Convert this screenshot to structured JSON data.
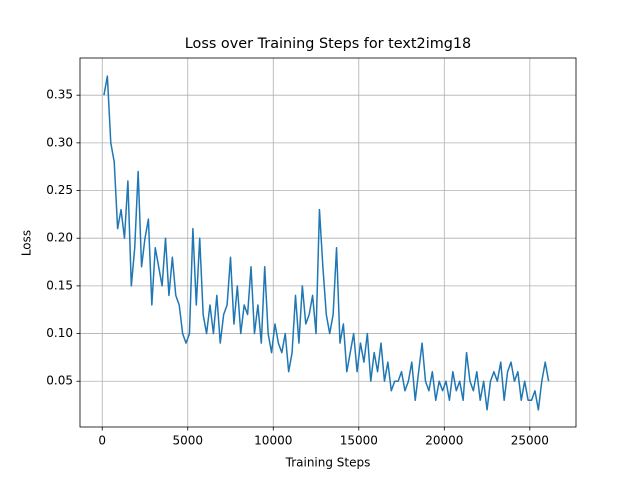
{
  "chart_data": {
    "type": "line",
    "title": "Loss over Training Steps for text2img18",
    "xlabel": "Training Steps",
    "ylabel": "Loss",
    "x": [
      100,
      300,
      500,
      700,
      900,
      1100,
      1300,
      1500,
      1700,
      1900,
      2100,
      2300,
      2500,
      2700,
      2900,
      3100,
      3300,
      3500,
      3700,
      3900,
      4100,
      4300,
      4500,
      4700,
      4900,
      5100,
      5300,
      5500,
      5700,
      5900,
      6100,
      6300,
      6500,
      6700,
      6900,
      7100,
      7300,
      7500,
      7700,
      7900,
      8100,
      8300,
      8500,
      8700,
      8900,
      9100,
      9300,
      9500,
      9700,
      9900,
      10100,
      10300,
      10500,
      10700,
      10900,
      11100,
      11300,
      11500,
      11700,
      11900,
      12100,
      12300,
      12500,
      12700,
      12900,
      13100,
      13300,
      13500,
      13700,
      13900,
      14100,
      14300,
      14500,
      14700,
      14900,
      15100,
      15300,
      15500,
      15700,
      15900,
      16100,
      16300,
      16500,
      16700,
      16900,
      17100,
      17300,
      17500,
      17700,
      17900,
      18100,
      18300,
      18500,
      18700,
      18900,
      19100,
      19300,
      19500,
      19700,
      19900,
      20100,
      20300,
      20500,
      20700,
      20900,
      21100,
      21300,
      21500,
      21700,
      21900,
      22100,
      22300,
      22500,
      22700,
      22900,
      23100,
      23300,
      23500,
      23700,
      23900,
      24100,
      24300,
      24500,
      24700,
      24900,
      25100,
      25300,
      25500,
      25700,
      25900,
      26100
    ],
    "series": [
      {
        "name": "Loss",
        "color": "#1f77b4",
        "values": [
          0.35,
          0.37,
          0.3,
          0.28,
          0.21,
          0.23,
          0.2,
          0.26,
          0.15,
          0.19,
          0.27,
          0.17,
          0.2,
          0.22,
          0.13,
          0.19,
          0.17,
          0.15,
          0.2,
          0.14,
          0.18,
          0.14,
          0.13,
          0.1,
          0.09,
          0.1,
          0.21,
          0.13,
          0.2,
          0.12,
          0.1,
          0.13,
          0.1,
          0.14,
          0.09,
          0.12,
          0.13,
          0.18,
          0.11,
          0.15,
          0.1,
          0.13,
          0.12,
          0.17,
          0.1,
          0.13,
          0.09,
          0.17,
          0.1,
          0.08,
          0.11,
          0.09,
          0.08,
          0.1,
          0.06,
          0.08,
          0.14,
          0.09,
          0.15,
          0.11,
          0.12,
          0.14,
          0.1,
          0.23,
          0.17,
          0.12,
          0.1,
          0.12,
          0.19,
          0.09,
          0.11,
          0.06,
          0.08,
          0.1,
          0.06,
          0.09,
          0.07,
          0.1,
          0.05,
          0.08,
          0.06,
          0.09,
          0.05,
          0.07,
          0.04,
          0.05,
          0.05,
          0.06,
          0.04,
          0.05,
          0.07,
          0.03,
          0.06,
          0.09,
          0.05,
          0.04,
          0.06,
          0.03,
          0.05,
          0.04,
          0.05,
          0.03,
          0.06,
          0.04,
          0.05,
          0.03,
          0.08,
          0.05,
          0.04,
          0.06,
          0.03,
          0.05,
          0.02,
          0.05,
          0.06,
          0.05,
          0.07,
          0.03,
          0.06,
          0.07,
          0.05,
          0.06,
          0.03,
          0.05,
          0.03,
          0.03,
          0.04,
          0.02,
          0.05,
          0.07,
          0.05
        ]
      }
    ],
    "xlim": [
      -1300,
      27700
    ],
    "ylim": [
      0.002,
      0.389
    ],
    "xticks": [
      0,
      5000,
      10000,
      15000,
      20000,
      25000
    ],
    "yticks": [
      0.05,
      {
        "value": 0.1,
        "label": "0.10"
      },
      0.15,
      {
        "value": 0.2,
        "label": "0.20"
      },
      0.25,
      {
        "value": 0.3,
        "label": "0.30"
      },
      0.35
    ],
    "grid": true
  }
}
